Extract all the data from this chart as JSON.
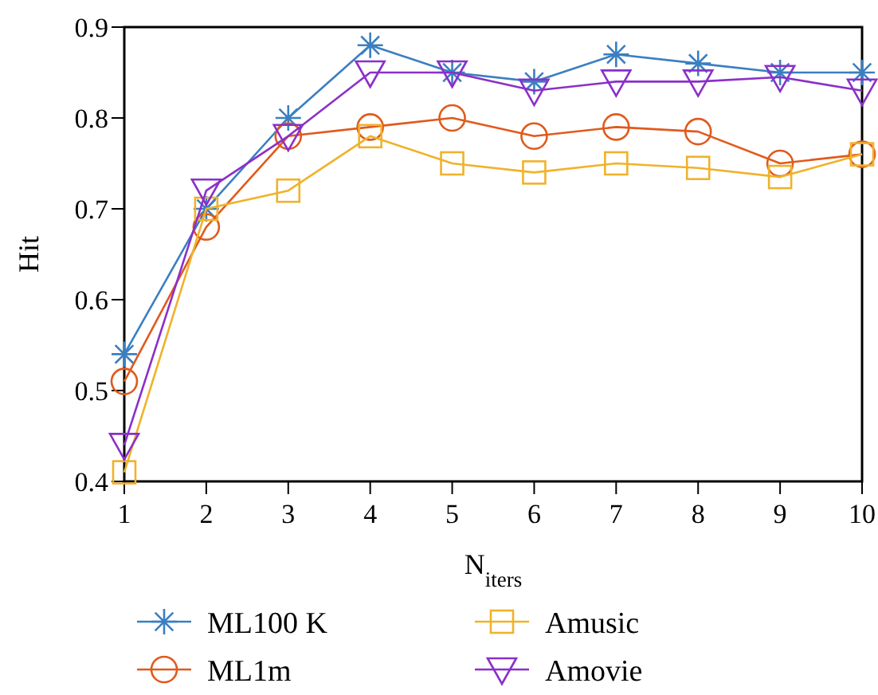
{
  "chart_data": {
    "type": "line",
    "xlabel": "N$_{iters}$",
    "ylabel": "Hit",
    "x": [
      1,
      2,
      3,
      4,
      5,
      6,
      7,
      8,
      9,
      10
    ],
    "xlim": [
      1,
      10
    ],
    "xticks": [
      1,
      2,
      3,
      4,
      5,
      6,
      7,
      8,
      9,
      10
    ],
    "ylim": [
      0.4,
      0.9
    ],
    "yticks": [
      0.4,
      0.5,
      0.6,
      0.7,
      0.8,
      0.9
    ],
    "grid": false,
    "legend": "bottom",
    "line_style": "solid",
    "series": [
      {
        "name": "ML100 K",
        "color": "#3a7fc1",
        "marker": "cross",
        "values": [
          0.54,
          0.7,
          0.8,
          0.88,
          0.85,
          0.84,
          0.87,
          0.86,
          0.85,
          0.85
        ]
      },
      {
        "name": "ML1m",
        "color": "#e05a1c",
        "marker": "circle",
        "values": [
          0.51,
          0.68,
          0.78,
          0.79,
          0.8,
          0.78,
          0.79,
          0.785,
          0.75,
          0.76
        ]
      },
      {
        "name": "Amusic",
        "color": "#f0b22a",
        "marker": "square",
        "values": [
          0.41,
          0.7,
          0.72,
          0.78,
          0.75,
          0.74,
          0.75,
          0.745,
          0.735,
          0.76
        ]
      },
      {
        "name": "Amovie",
        "color": "#8b2fc9",
        "marker": "triangle",
        "values": [
          0.44,
          0.72,
          0.78,
          0.85,
          0.85,
          0.83,
          0.84,
          0.84,
          0.845,
          0.83
        ]
      }
    ]
  }
}
